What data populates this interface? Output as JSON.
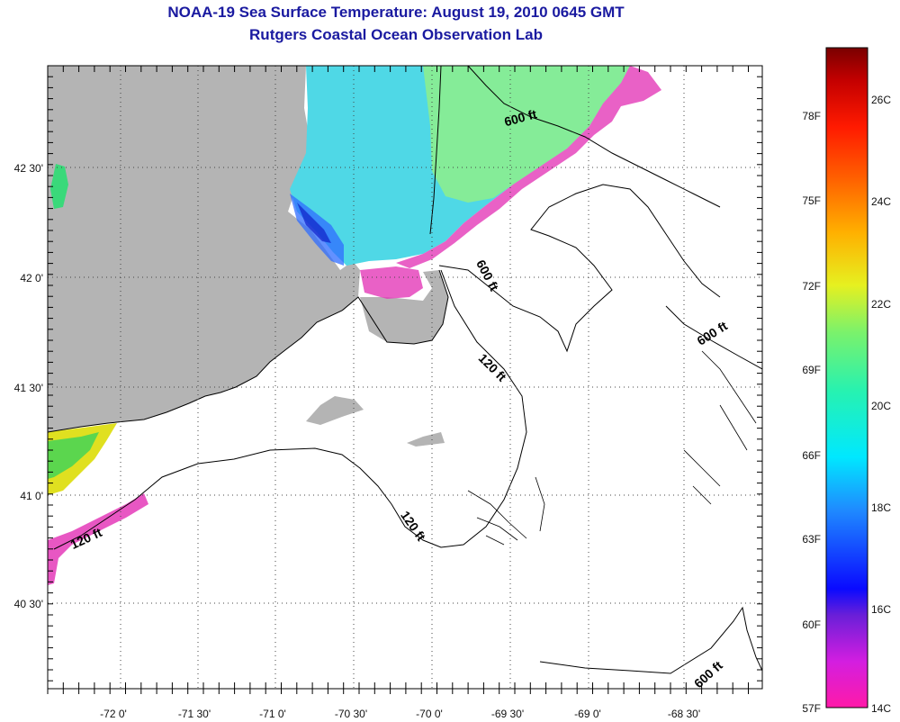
{
  "header": {
    "title": "NOAA-19 Sea Surface Temperature:  August 19, 2010 0645 GMT",
    "subtitle": "Rutgers Coastal Ocean Observation Lab"
  },
  "map": {
    "lon_labels": [
      "-72 0'",
      "-71 30'",
      "-71 0'",
      "-70 30'",
      "-70 0'",
      "-69 30'",
      "-69 0'",
      "-68 30'"
    ],
    "lat_labels": [
      "42 30'",
      "42 0'",
      "41 30'",
      "41 0'",
      "40 30'"
    ],
    "contour_labels": [
      "600 ft",
      "600 ft",
      "600 ft",
      "120 ft",
      "120 ft",
      "120 ft",
      "600 ft"
    ],
    "land_color": "#b4b4b4"
  },
  "colorbar": {
    "f_labels": [
      "78F",
      "75F",
      "72F",
      "69F",
      "66F",
      "63F",
      "60F",
      "57F"
    ],
    "c_labels": [
      "26C",
      "24C",
      "22C",
      "20C",
      "18C",
      "16C",
      "14C"
    ]
  }
}
